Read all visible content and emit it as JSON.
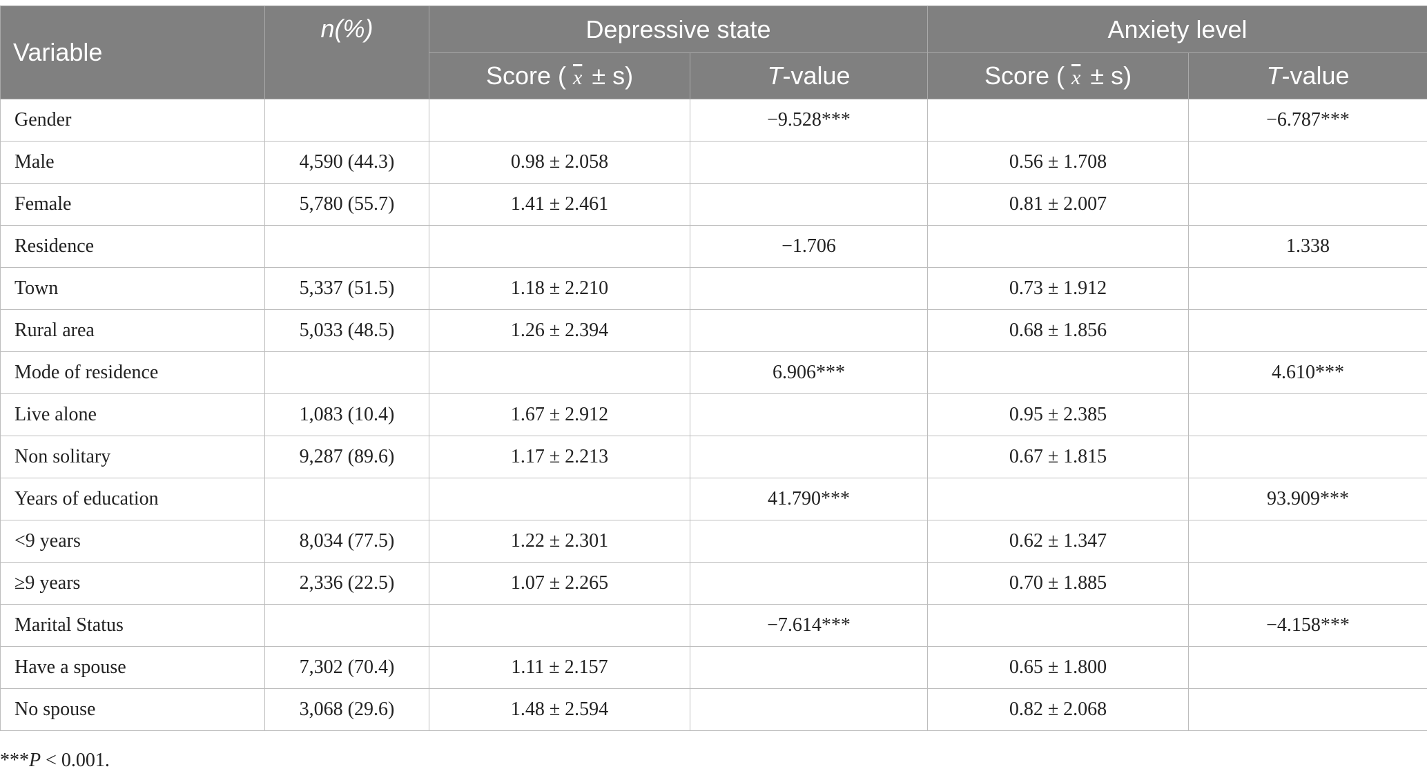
{
  "header": {
    "variable": "Variable",
    "n_pct": "n(%)",
    "depressive": "Depressive state",
    "anxiety": "Anxiety level",
    "score_pre": "Score (",
    "score_xbar": "x",
    "score_post": "± s)",
    "tvalue_t": "T",
    "tvalue_rest": "-value"
  },
  "rows": [
    {
      "variable": "Gender",
      "n": "",
      "dep_score": "",
      "dep_t": "−9.528***",
      "anx_score": "",
      "anx_t": "−6.787***"
    },
    {
      "variable": "Male",
      "n": "4,590 (44.3)",
      "dep_score": "0.98 ± 2.058",
      "dep_t": "",
      "anx_score": "0.56 ± 1.708",
      "anx_t": ""
    },
    {
      "variable": "Female",
      "n": "5,780 (55.7)",
      "dep_score": "1.41 ± 2.461",
      "dep_t": "",
      "anx_score": "0.81 ± 2.007",
      "anx_t": ""
    },
    {
      "variable": "Residence",
      "n": "",
      "dep_score": "",
      "dep_t": "−1.706",
      "anx_score": "",
      "anx_t": "1.338"
    },
    {
      "variable": "Town",
      "n": "5,337 (51.5)",
      "dep_score": "1.18 ± 2.210",
      "dep_t": "",
      "anx_score": "0.73 ± 1.912",
      "anx_t": ""
    },
    {
      "variable": "Rural area",
      "n": "5,033 (48.5)",
      "dep_score": "1.26 ± 2.394",
      "dep_t": "",
      "anx_score": "0.68 ± 1.856",
      "anx_t": ""
    },
    {
      "variable": "Mode of residence",
      "n": "",
      "dep_score": "",
      "dep_t": "6.906***",
      "anx_score": "",
      "anx_t": "4.610***"
    },
    {
      "variable": "Live alone",
      "n": "1,083 (10.4)",
      "dep_score": "1.67 ± 2.912",
      "dep_t": "",
      "anx_score": "0.95 ± 2.385",
      "anx_t": ""
    },
    {
      "variable": "Non solitary",
      "n": "9,287 (89.6)",
      "dep_score": "1.17 ± 2.213",
      "dep_t": "",
      "anx_score": "0.67 ± 1.815",
      "anx_t": ""
    },
    {
      "variable": "Years of education",
      "n": "",
      "dep_score": "",
      "dep_t": "41.790***",
      "anx_score": "",
      "anx_t": "93.909***"
    },
    {
      "variable": "<9 years",
      "n": "8,034 (77.5)",
      "dep_score": "1.22 ± 2.301",
      "dep_t": "",
      "anx_score": "0.62 ± 1.347",
      "anx_t": ""
    },
    {
      "variable": "≥9 years",
      "n": "2,336 (22.5)",
      "dep_score": "1.07 ± 2.265",
      "dep_t": "",
      "anx_score": "0.70 ± 1.885",
      "anx_t": ""
    },
    {
      "variable": "Marital Status",
      "n": "",
      "dep_score": "",
      "dep_t": "−7.614***",
      "anx_score": "",
      "anx_t": "−4.158***"
    },
    {
      "variable": "Have a spouse",
      "n": "7,302 (70.4)",
      "dep_score": "1.11 ± 2.157",
      "dep_t": "",
      "anx_score": "0.65 ± 1.800",
      "anx_t": ""
    },
    {
      "variable": "No spouse",
      "n": "3,068 (29.6)",
      "dep_score": "1.48 ± 2.594",
      "dep_t": "",
      "anx_score": "0.82 ± 2.068",
      "anx_t": ""
    }
  ],
  "footnote": {
    "stars": "***",
    "p": "P",
    "rest": " < 0.001."
  }
}
